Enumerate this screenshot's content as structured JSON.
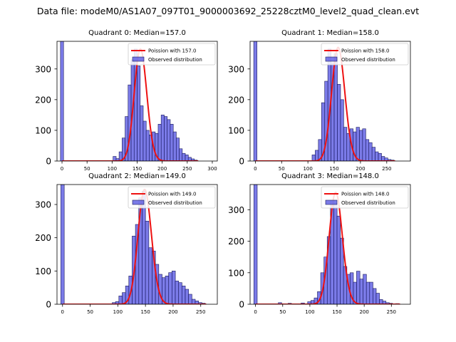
{
  "figure_title": "Data file: modeM0/AS1A07_097T01_9000003692_25228cztM0_level2_quad_clean.evt",
  "legend": {
    "observed_label": "Observed distribution",
    "poisson_prefix": "Poission with "
  },
  "colors": {
    "bar": "#4f4fe0",
    "poisson": "#ee1111"
  },
  "chart_data": [
    {
      "type": "bar",
      "title": "Quadrant 0: Median=157.0",
      "xlim": [
        -10,
        310
      ],
      "ylim": [
        0,
        390
      ],
      "xticks": [
        0,
        50,
        100,
        150,
        200,
        250,
        300
      ],
      "yticks": [
        0,
        100,
        200,
        300
      ],
      "bin_width": 6.2,
      "poisson_label": "Poission with 157.0",
      "poisson_mean": 157,
      "poisson_peak": 365,
      "bins": [
        {
          "x": 0,
          "y": 390
        },
        {
          "x": 105,
          "y": 15
        },
        {
          "x": 111,
          "y": 8
        },
        {
          "x": 117,
          "y": 30
        },
        {
          "x": 123,
          "y": 75
        },
        {
          "x": 129,
          "y": 145
        },
        {
          "x": 135,
          "y": 248
        },
        {
          "x": 141,
          "y": 330
        },
        {
          "x": 147,
          "y": 365
        },
        {
          "x": 153,
          "y": 310
        },
        {
          "x": 159,
          "y": 180
        },
        {
          "x": 165,
          "y": 130
        },
        {
          "x": 171,
          "y": 100
        },
        {
          "x": 177,
          "y": 85
        },
        {
          "x": 183,
          "y": 95
        },
        {
          "x": 189,
          "y": 90
        },
        {
          "x": 195,
          "y": 120
        },
        {
          "x": 201,
          "y": 150
        },
        {
          "x": 207,
          "y": 145
        },
        {
          "x": 213,
          "y": 135
        },
        {
          "x": 219,
          "y": 120
        },
        {
          "x": 225,
          "y": 95
        },
        {
          "x": 231,
          "y": 75
        },
        {
          "x": 237,
          "y": 40
        },
        {
          "x": 243,
          "y": 25
        },
        {
          "x": 249,
          "y": 20
        },
        {
          "x": 255,
          "y": 12
        },
        {
          "x": 261,
          "y": 7
        },
        {
          "x": 267,
          "y": 3
        }
      ]
    },
    {
      "type": "bar",
      "title": "Quadrant 1: Median=158.0",
      "xlim": [
        -10,
        295
      ],
      "ylim": [
        0,
        390
      ],
      "xticks": [
        0,
        50,
        100,
        150,
        200,
        250
      ],
      "yticks": [
        0,
        100,
        200,
        300
      ],
      "bin_width": 6.2,
      "poisson_label": "Poission with 158.0",
      "poisson_mean": 158,
      "poisson_peak": 370,
      "bins": [
        {
          "x": 0,
          "y": 390
        },
        {
          "x": 111,
          "y": 20
        },
        {
          "x": 117,
          "y": 35
        },
        {
          "x": 123,
          "y": 70
        },
        {
          "x": 129,
          "y": 190
        },
        {
          "x": 135,
          "y": 260
        },
        {
          "x": 141,
          "y": 365
        },
        {
          "x": 147,
          "y": 320
        },
        {
          "x": 153,
          "y": 350
        },
        {
          "x": 159,
          "y": 250
        },
        {
          "x": 165,
          "y": 200
        },
        {
          "x": 171,
          "y": 110
        },
        {
          "x": 177,
          "y": 90
        },
        {
          "x": 183,
          "y": 105
        },
        {
          "x": 189,
          "y": 95
        },
        {
          "x": 195,
          "y": 110
        },
        {
          "x": 201,
          "y": 100
        },
        {
          "x": 207,
          "y": 105
        },
        {
          "x": 213,
          "y": 70
        },
        {
          "x": 219,
          "y": 60
        },
        {
          "x": 225,
          "y": 45
        },
        {
          "x": 231,
          "y": 30
        },
        {
          "x": 237,
          "y": 25
        },
        {
          "x": 243,
          "y": 15
        },
        {
          "x": 249,
          "y": 10
        },
        {
          "x": 255,
          "y": 5
        },
        {
          "x": 261,
          "y": 3
        }
      ]
    },
    {
      "type": "bar",
      "title": "Quadrant 2: Median=149.0",
      "xlim": [
        -10,
        280
      ],
      "ylim": [
        0,
        360
      ],
      "xticks": [
        0,
        50,
        100,
        150,
        200,
        250
      ],
      "yticks": [
        0,
        100,
        200,
        300
      ],
      "bin_width": 6.2,
      "poisson_label": "Poission with 149.0",
      "poisson_mean": 149,
      "poisson_peak": 345,
      "bins": [
        {
          "x": 0,
          "y": 360
        },
        {
          "x": 93,
          "y": 5
        },
        {
          "x": 99,
          "y": 8
        },
        {
          "x": 105,
          "y": 25
        },
        {
          "x": 111,
          "y": 35
        },
        {
          "x": 117,
          "y": 55
        },
        {
          "x": 123,
          "y": 85
        },
        {
          "x": 129,
          "y": 205
        },
        {
          "x": 135,
          "y": 240
        },
        {
          "x": 141,
          "y": 320
        },
        {
          "x": 147,
          "y": 340
        },
        {
          "x": 153,
          "y": 250
        },
        {
          "x": 159,
          "y": 170
        },
        {
          "x": 165,
          "y": 160
        },
        {
          "x": 171,
          "y": 120
        },
        {
          "x": 177,
          "y": 90
        },
        {
          "x": 183,
          "y": 80
        },
        {
          "x": 189,
          "y": 85
        },
        {
          "x": 195,
          "y": 95
        },
        {
          "x": 201,
          "y": 100
        },
        {
          "x": 207,
          "y": 70
        },
        {
          "x": 213,
          "y": 65
        },
        {
          "x": 219,
          "y": 55
        },
        {
          "x": 225,
          "y": 45
        },
        {
          "x": 231,
          "y": 30
        },
        {
          "x": 237,
          "y": 15
        },
        {
          "x": 243,
          "y": 10
        },
        {
          "x": 249,
          "y": 5
        },
        {
          "x": 255,
          "y": 3
        }
      ]
    },
    {
      "type": "bar",
      "title": "Quadrant 3: Median=148.0",
      "xlim": [
        -10,
        285
      ],
      "ylim": [
        0,
        380
      ],
      "xticks": [
        0,
        50,
        100,
        150,
        200,
        250
      ],
      "yticks": [
        0,
        100,
        200,
        300
      ],
      "bin_width": 6.2,
      "poisson_label": "Poission with 148.0",
      "poisson_mean": 148,
      "poisson_peak": 355,
      "bins": [
        {
          "x": 0,
          "y": 380
        },
        {
          "x": 45,
          "y": 5
        },
        {
          "x": 63,
          "y": 3
        },
        {
          "x": 87,
          "y": 4
        },
        {
          "x": 99,
          "y": 8
        },
        {
          "x": 105,
          "y": 12
        },
        {
          "x": 111,
          "y": 20
        },
        {
          "x": 117,
          "y": 40
        },
        {
          "x": 123,
          "y": 100
        },
        {
          "x": 129,
          "y": 150
        },
        {
          "x": 135,
          "y": 215
        },
        {
          "x": 141,
          "y": 330
        },
        {
          "x": 147,
          "y": 320
        },
        {
          "x": 153,
          "y": 280
        },
        {
          "x": 159,
          "y": 210
        },
        {
          "x": 165,
          "y": 120
        },
        {
          "x": 171,
          "y": 95
        },
        {
          "x": 177,
          "y": 100
        },
        {
          "x": 183,
          "y": 70
        },
        {
          "x": 189,
          "y": 105
        },
        {
          "x": 195,
          "y": 80
        },
        {
          "x": 201,
          "y": 95
        },
        {
          "x": 207,
          "y": 70
        },
        {
          "x": 213,
          "y": 70
        },
        {
          "x": 219,
          "y": 50
        },
        {
          "x": 225,
          "y": 35
        },
        {
          "x": 231,
          "y": 15
        },
        {
          "x": 237,
          "y": 10
        },
        {
          "x": 243,
          "y": 5
        },
        {
          "x": 249,
          "y": 3
        },
        {
          "x": 261,
          "y": 2
        }
      ]
    }
  ]
}
